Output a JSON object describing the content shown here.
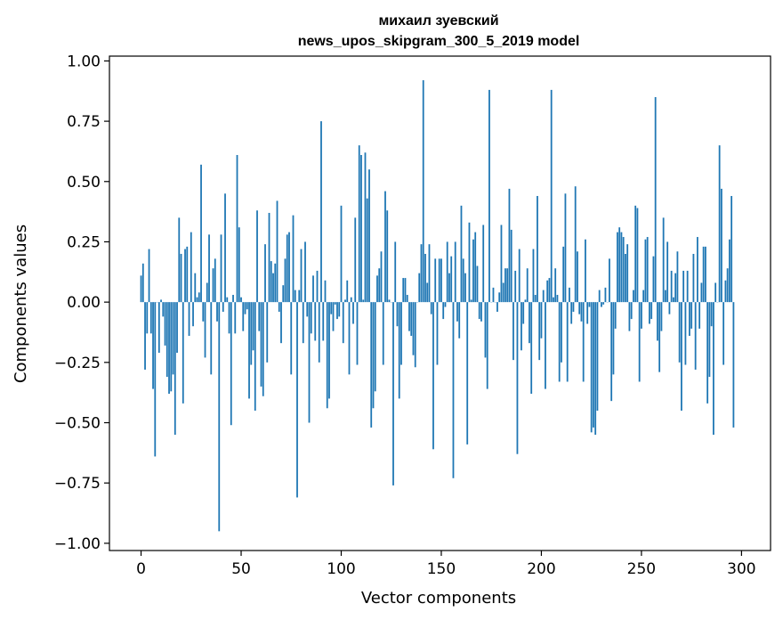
{
  "chart_data": {
    "type": "bar",
    "title": "михаил зуевский",
    "subtitle": "news_upos_skipgram_300_5_2019 model",
    "xlabel": "Vector components",
    "ylabel": "Components values",
    "xlim": [
      -15.8,
      314.5
    ],
    "ylim": [
      -1.03,
      1.02
    ],
    "xticks": [
      0,
      50,
      100,
      150,
      200,
      250,
      300
    ],
    "xtick_labels": [
      "0",
      "50",
      "100",
      "150",
      "200",
      "250",
      "300"
    ],
    "yticks": [
      1.0,
      0.75,
      0.5,
      0.25,
      0.0,
      -0.25,
      -0.5,
      -0.75,
      -1.0
    ],
    "ytick_labels": [
      "1.00",
      "0.75",
      "0.50",
      "0.25",
      "0.00",
      "−0.25",
      "−0.50",
      "−0.75",
      "−1.00"
    ],
    "bar_color": "#1f77b4",
    "values": [
      0.11,
      0.16,
      -0.28,
      -0.13,
      0.22,
      -0.13,
      -0.36,
      -0.64,
      0.0,
      -0.21,
      0.01,
      -0.06,
      -0.18,
      -0.31,
      -0.38,
      -0.37,
      -0.3,
      -0.55,
      -0.21,
      0.35,
      0.2,
      -0.42,
      0.22,
      0.23,
      -0.14,
      0.29,
      -0.1,
      0.12,
      0.02,
      0.04,
      0.57,
      -0.08,
      -0.23,
      0.08,
      0.28,
      -0.3,
      0.14,
      0.18,
      -0.08,
      -0.95,
      0.28,
      -0.04,
      0.45,
      0.02,
      -0.13,
      -0.51,
      0.03,
      -0.13,
      0.61,
      0.31,
      0.02,
      -0.12,
      -0.05,
      -0.03,
      -0.4,
      -0.26,
      -0.2,
      -0.45,
      0.38,
      -0.12,
      -0.35,
      -0.39,
      0.24,
      -0.25,
      0.37,
      0.17,
      0.12,
      0.16,
      0.42,
      -0.04,
      -0.17,
      0.07,
      0.18,
      0.28,
      0.29,
      -0.3,
      0.36,
      0.05,
      -0.81,
      0.05,
      0.22,
      -0.17,
      0.25,
      -0.06,
      -0.5,
      -0.13,
      0.11,
      -0.16,
      0.13,
      -0.25,
      0.75,
      -0.16,
      0.09,
      -0.44,
      -0.4,
      -0.05,
      -0.12,
      -0.01,
      -0.07,
      -0.06,
      0.4,
      -0.17,
      0.01,
      0.09,
      -0.3,
      0.02,
      -0.09,
      0.35,
      -0.26,
      0.65,
      0.61,
      0.01,
      0.62,
      0.43,
      0.55,
      -0.52,
      -0.44,
      -0.37,
      0.11,
      0.14,
      0.21,
      -0.26,
      0.46,
      0.38,
      0.01,
      0.0,
      -0.76,
      0.25,
      -0.1,
      -0.4,
      -0.26,
      0.1,
      0.1,
      0.03,
      -0.12,
      -0.14,
      -0.22,
      -0.27,
      0.0,
      0.12,
      0.24,
      0.92,
      0.2,
      0.08,
      0.24,
      -0.05,
      -0.61,
      0.18,
      -0.26,
      0.18,
      0.18,
      -0.07,
      -0.02,
      0.25,
      0.12,
      0.19,
      -0.73,
      0.25,
      -0.08,
      -0.15,
      0.4,
      0.18,
      0.12,
      -0.59,
      0.33,
      0.01,
      0.26,
      0.29,
      0.15,
      -0.07,
      -0.08,
      0.32,
      -0.23,
      -0.36,
      0.88,
      0.0,
      0.06,
      0.0,
      -0.04,
      0.04,
      0.32,
      0.08,
      0.14,
      0.14,
      0.47,
      0.3,
      -0.24,
      0.13,
      -0.63,
      0.22,
      -0.2,
      -0.09,
      0.01,
      0.14,
      -0.17,
      -0.38,
      0.22,
      0.03,
      0.44,
      -0.24,
      -0.15,
      0.05,
      -0.36,
      0.09,
      0.1,
      0.88,
      0.02,
      0.14,
      0.03,
      -0.33,
      -0.25,
      0.23,
      0.45,
      -0.33,
      0.06,
      -0.09,
      -0.04,
      0.48,
      0.21,
      -0.05,
      -0.08,
      -0.33,
      0.26,
      -0.09,
      -0.02,
      -0.54,
      -0.52,
      -0.55,
      -0.45,
      0.05,
      -0.02,
      -0.01,
      0.06,
      0.0,
      0.18,
      -0.41,
      -0.3,
      -0.11,
      0.29,
      0.31,
      0.29,
      0.27,
      0.2,
      0.24,
      -0.12,
      -0.07,
      0.05,
      0.4,
      0.39,
      -0.33,
      -0.11,
      0.05,
      0.26,
      0.27,
      -0.09,
      -0.07,
      0.19,
      0.85,
      -0.16,
      -0.29,
      -0.12,
      0.35,
      0.05,
      0.25,
      -0.05,
      0.13,
      0.02,
      0.12,
      0.21,
      -0.25,
      -0.45,
      0.13,
      -0.26,
      0.13,
      -0.14,
      -0.11,
      0.2,
      -0.28,
      0.27,
      -0.11,
      0.08,
      0.23,
      0.23,
      -0.42,
      -0.31,
      -0.1,
      -0.55,
      0.08,
      0.0,
      0.65,
      0.47,
      -0.26,
      0.09,
      0.14,
      0.26,
      0.44,
      -0.52
    ]
  }
}
